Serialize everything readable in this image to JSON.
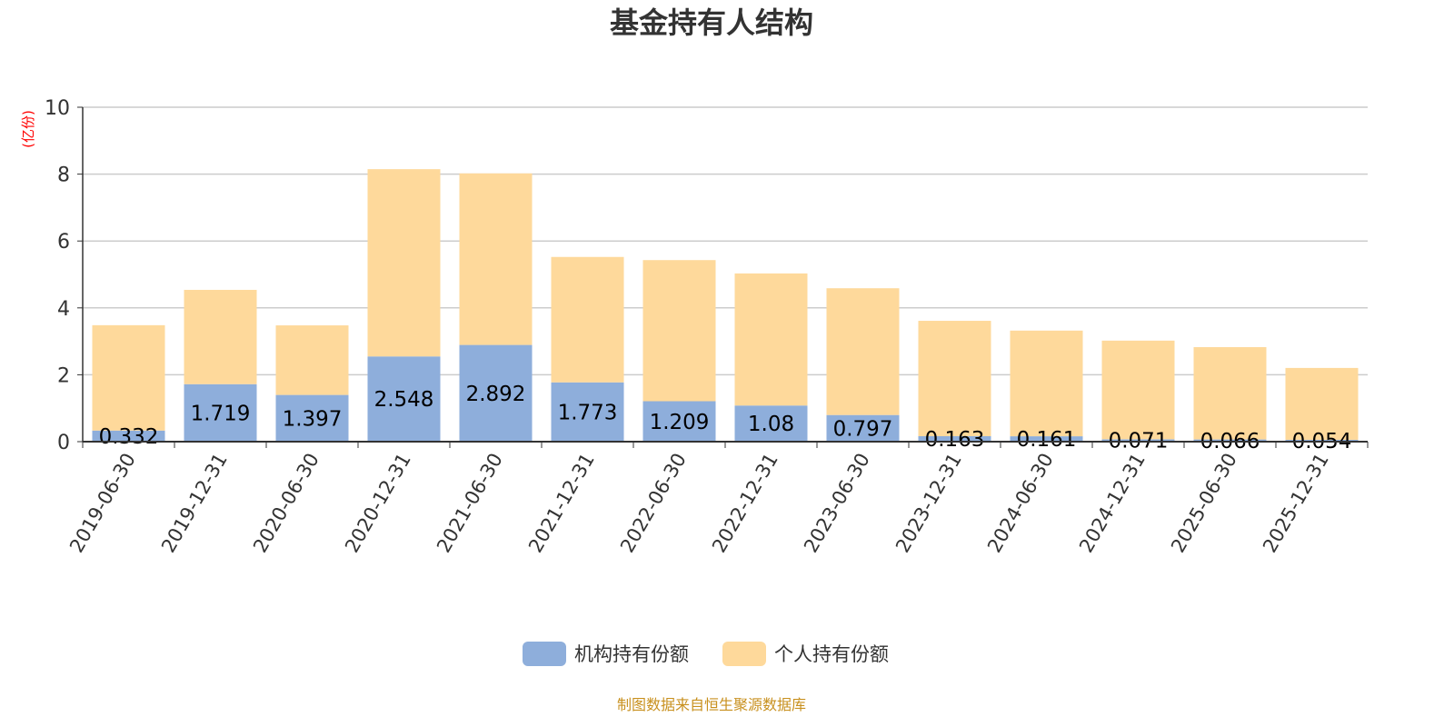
{
  "chart_data": {
    "type": "bar",
    "stacked": true,
    "title": "基金持有人结构",
    "ylabel": "(亿份)",
    "ylim": [
      0,
      10
    ],
    "yticks": [
      0,
      2,
      4,
      6,
      8,
      10
    ],
    "grid": true,
    "legend_position": "bottom",
    "categories": [
      "2019-06-30",
      "2019-12-31",
      "2020-06-30",
      "2020-12-31",
      "2021-06-30",
      "2021-12-31",
      "2022-06-30",
      "2022-12-31",
      "2023-06-30",
      "2023-12-31",
      "2024-06-30",
      "2024-12-31",
      "2025-06-30",
      "2025-12-31"
    ],
    "series": [
      {
        "name": "机构持有份额",
        "color": "#8eaedb",
        "values": [
          0.332,
          1.719,
          1.397,
          2.548,
          2.892,
          1.773,
          1.209,
          1.08,
          0.797,
          0.163,
          0.161,
          0.071,
          0.066,
          0.054
        ],
        "labels": [
          "0.332",
          "1.719",
          "1.397",
          "2.548",
          "2.892",
          "1.773",
          "1.209",
          "1.08",
          "0.797",
          "0.163",
          "0.161",
          "0.071",
          "0.066",
          "0.054"
        ]
      },
      {
        "name": "个人持有份额",
        "color": "#fed99b",
        "values": [
          3.15,
          2.82,
          2.08,
          5.6,
          5.13,
          3.75,
          4.22,
          3.95,
          3.79,
          3.45,
          3.16,
          2.95,
          2.76,
          2.15
        ]
      }
    ]
  },
  "footer": "制图数据来自恒生聚源数据库"
}
